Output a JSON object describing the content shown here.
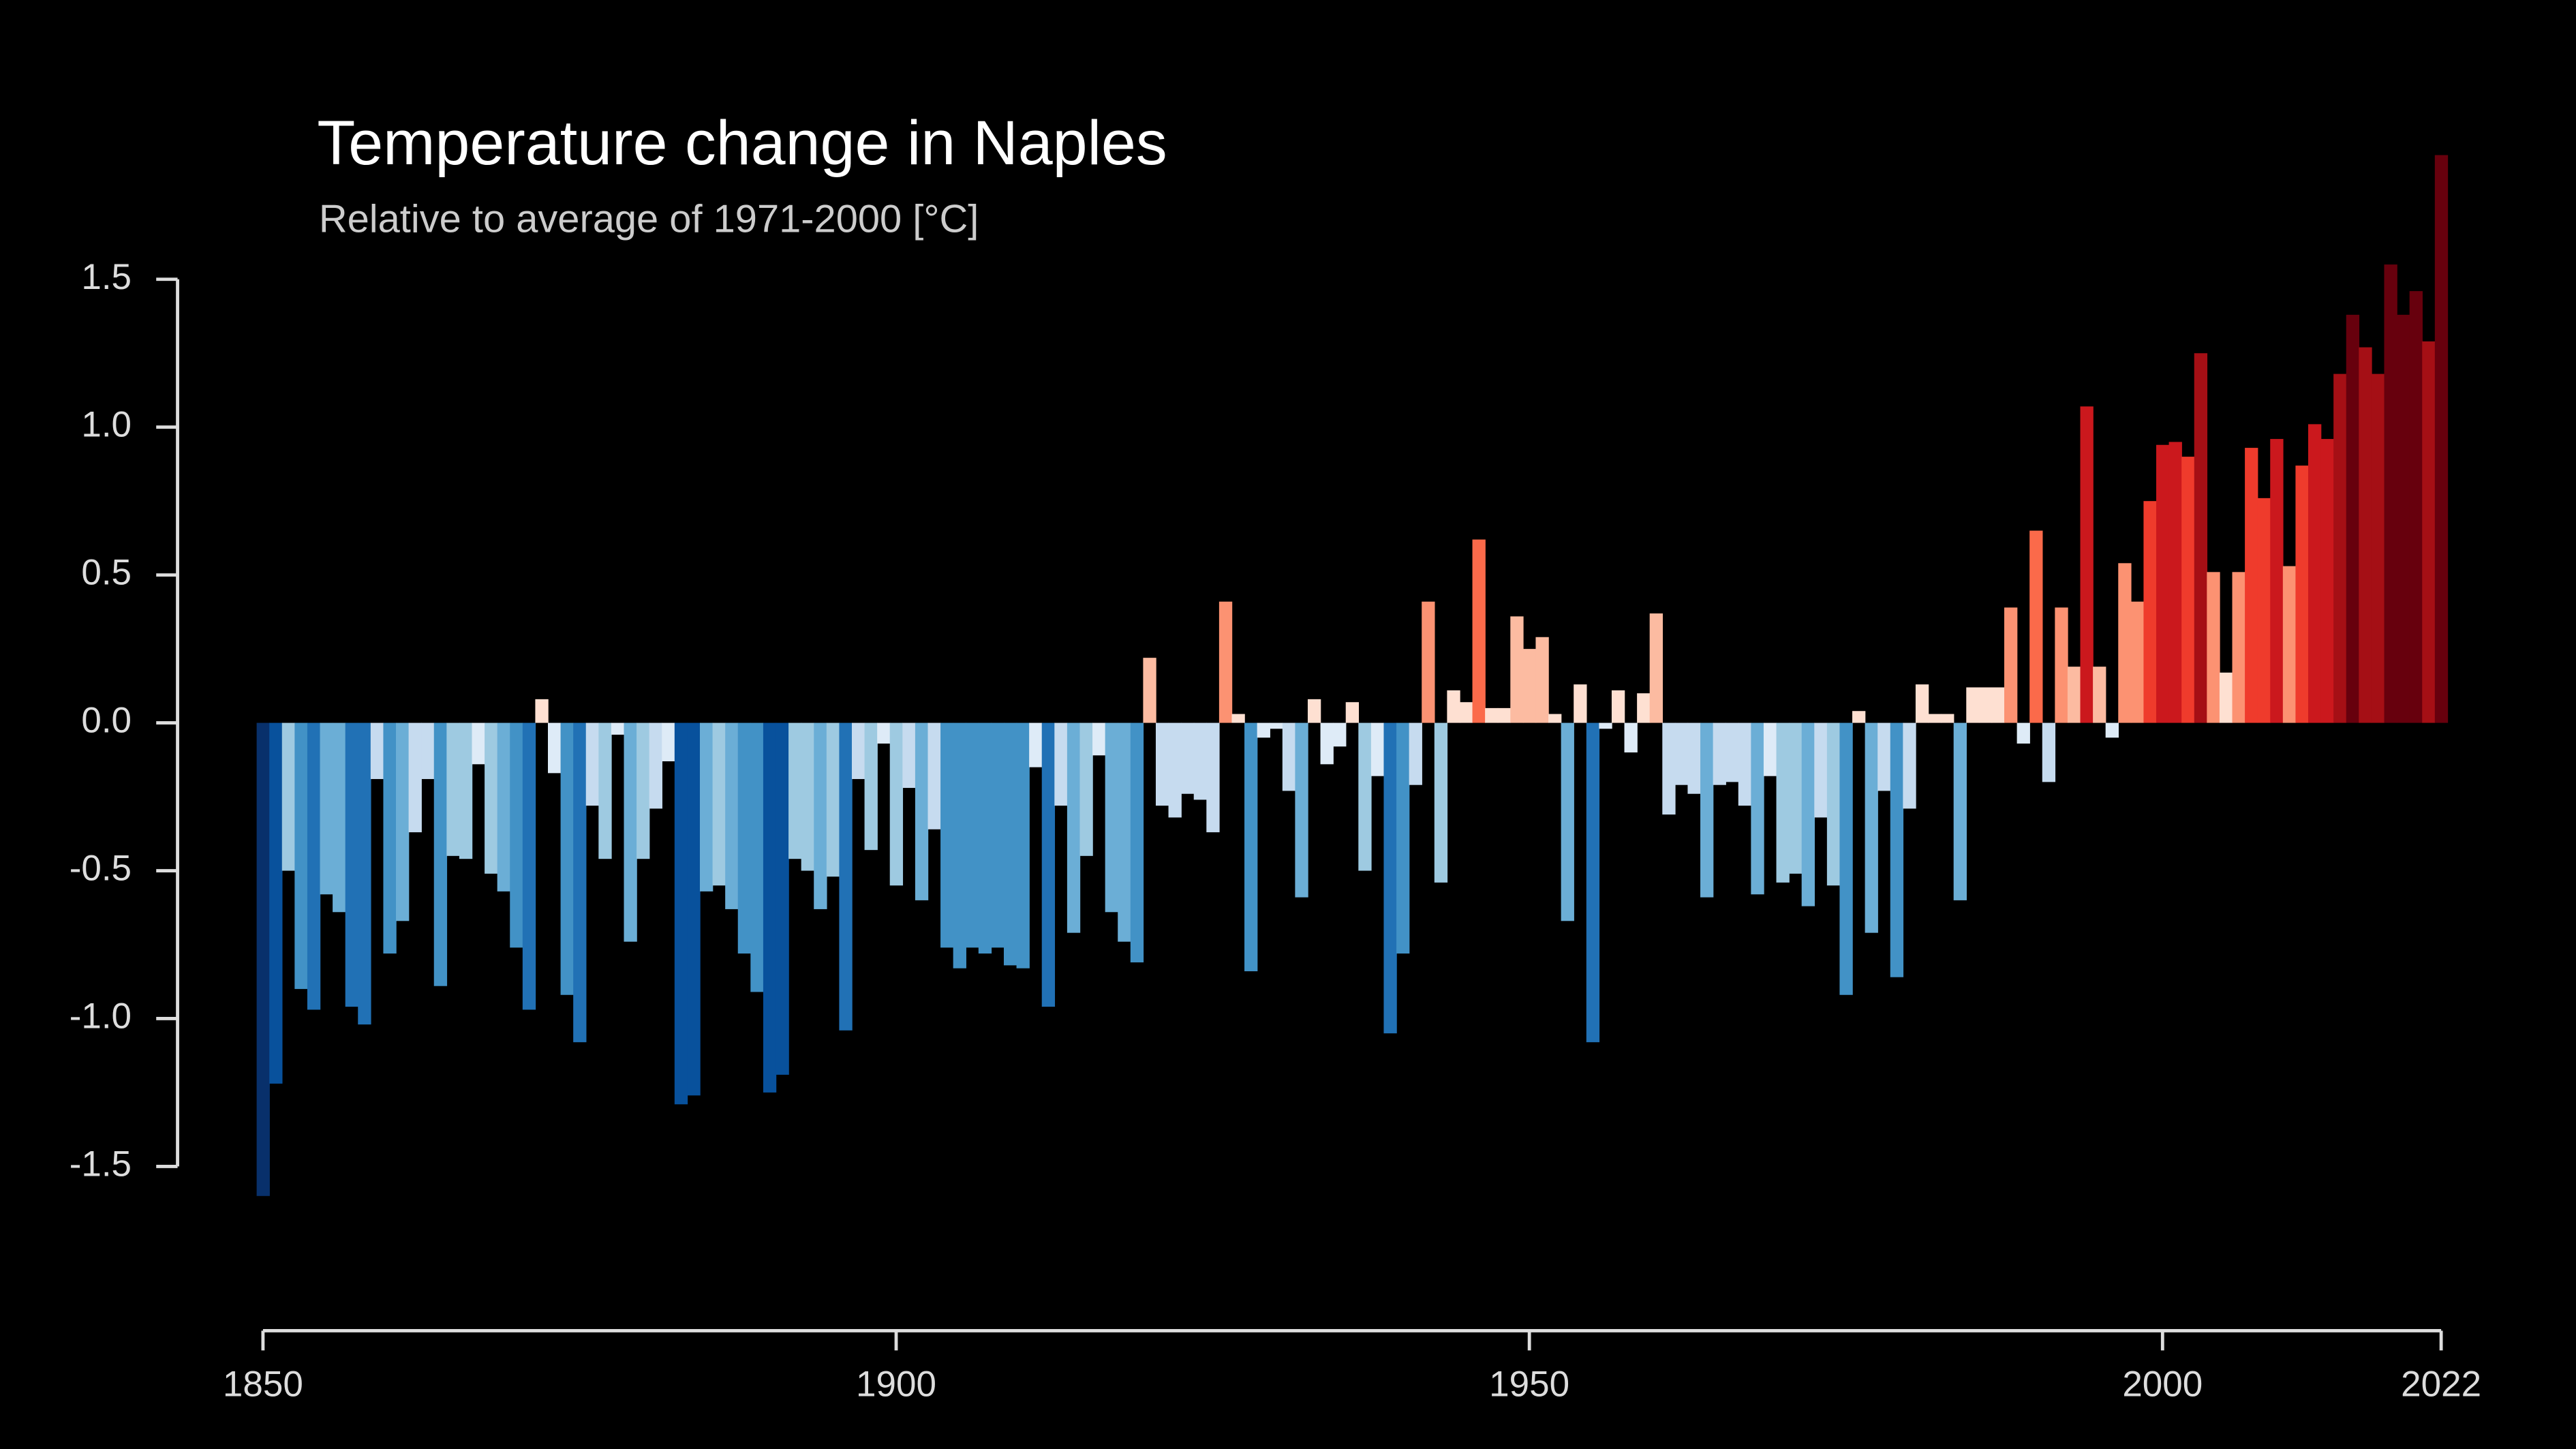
{
  "chart_data": {
    "type": "bar",
    "title": "Temperature change in Naples",
    "subtitle": "Relative to average of 1971-2000  [°C]",
    "x": [
      1850,
      1851,
      1852,
      1853,
      1854,
      1855,
      1856,
      1857,
      1858,
      1859,
      1860,
      1861,
      1862,
      1863,
      1864,
      1865,
      1866,
      1867,
      1868,
      1869,
      1870,
      1871,
      1872,
      1873,
      1874,
      1875,
      1876,
      1877,
      1878,
      1879,
      1880,
      1881,
      1882,
      1883,
      1884,
      1885,
      1886,
      1887,
      1888,
      1889,
      1890,
      1891,
      1892,
      1893,
      1894,
      1895,
      1896,
      1897,
      1898,
      1899,
      1900,
      1901,
      1902,
      1903,
      1904,
      1905,
      1906,
      1907,
      1908,
      1909,
      1910,
      1911,
      1912,
      1913,
      1914,
      1915,
      1916,
      1917,
      1918,
      1919,
      1920,
      1921,
      1922,
      1923,
      1924,
      1925,
      1926,
      1927,
      1928,
      1929,
      1930,
      1931,
      1932,
      1933,
      1934,
      1935,
      1936,
      1937,
      1938,
      1939,
      1940,
      1941,
      1942,
      1943,
      1944,
      1945,
      1946,
      1947,
      1948,
      1949,
      1950,
      1951,
      1952,
      1953,
      1954,
      1955,
      1956,
      1957,
      1958,
      1959,
      1960,
      1961,
      1962,
      1963,
      1964,
      1965,
      1966,
      1967,
      1968,
      1969,
      1970,
      1971,
      1972,
      1973,
      1974,
      1975,
      1976,
      1977,
      1978,
      1979,
      1980,
      1981,
      1982,
      1983,
      1984,
      1985,
      1986,
      1987,
      1988,
      1989,
      1990,
      1991,
      1992,
      1993,
      1994,
      1995,
      1996,
      1997,
      1998,
      1999,
      2000,
      2001,
      2002,
      2003,
      2004,
      2005,
      2006,
      2007,
      2008,
      2009,
      2010,
      2011,
      2012,
      2013,
      2014,
      2015,
      2016,
      2017,
      2018,
      2019,
      2020,
      2021,
      2022
    ],
    "values": [
      -1.6,
      -1.22,
      -0.5,
      -0.9,
      -0.97,
      -0.58,
      -0.64,
      -0.96,
      -1.02,
      -0.19,
      -0.78,
      -0.67,
      -0.37,
      -0.19,
      -0.89,
      -0.45,
      -0.46,
      -0.14,
      -0.51,
      -0.57,
      -0.76,
      -0.97,
      0.08,
      -0.17,
      -0.92,
      -1.08,
      -0.28,
      -0.46,
      -0.04,
      -0.74,
      -0.46,
      -0.29,
      -0.13,
      -1.29,
      -1.26,
      -0.57,
      -0.55,
      -0.63,
      -0.78,
      -0.91,
      -1.25,
      -1.19,
      -0.46,
      -0.5,
      -0.63,
      -0.52,
      -1.04,
      -0.19,
      -0.43,
      -0.07,
      -0.55,
      -0.22,
      -0.6,
      -0.36,
      -0.76,
      -0.83,
      -0.76,
      -0.78,
      -0.76,
      -0.82,
      -0.83,
      -0.15,
      -0.96,
      -0.28,
      -0.71,
      -0.45,
      -0.11,
      -0.64,
      -0.74,
      -0.81,
      0.22,
      -0.28,
      -0.32,
      -0.24,
      -0.26,
      -0.37,
      0.41,
      0.03,
      -0.84,
      -0.05,
      -0.02,
      -0.23,
      -0.59,
      0.08,
      -0.14,
      -0.08,
      0.07,
      -0.5,
      -0.18,
      -1.05,
      -0.78,
      -0.21,
      0.41,
      -0.54,
      0.11,
      0.07,
      0.62,
      0.05,
      0.05,
      0.36,
      0.25,
      0.29,
      0.03,
      -0.67,
      0.13,
      -1.08,
      -0.02,
      0.11,
      -0.1,
      0.1,
      0.37,
      -0.31,
      -0.21,
      -0.24,
      -0.59,
      -0.21,
      -0.2,
      -0.28,
      -0.58,
      -0.18,
      -0.54,
      -0.51,
      -0.62,
      -0.32,
      -0.55,
      -0.92,
      0.04,
      -0.71,
      -0.23,
      -0.86,
      -0.29,
      0.13,
      0.03,
      0.03,
      -0.6,
      0.12,
      0.12,
      0.12,
      0.39,
      -0.07,
      0.65,
      -0.2,
      0.39,
      0.19,
      1.07,
      0.19,
      -0.05,
      0.54,
      0.41,
      0.75,
      0.94,
      0.95,
      0.9,
      1.25,
      0.51,
      0.17,
      0.51,
      0.93,
      0.76,
      0.96,
      0.53,
      0.87,
      1.01,
      0.96,
      1.18,
      1.38,
      1.27,
      1.18,
      1.55,
      1.38,
      1.46,
      1.29,
      1.92
    ],
    "palette": [
      "#08306b",
      "#08519c",
      "#2171b5",
      "#4292c6",
      "#6baed6",
      "#9ecae1",
      "#c6dbef",
      "#deebf7",
      "#fee0d2",
      "#fcbba1",
      "#fc9272",
      "#fb6a4a",
      "#ef3b2c",
      "#cb181d",
      "#a50f15",
      "#67000d"
    ],
    "xlim": [
      1850,
      2022
    ],
    "xticks": [
      1850,
      1900,
      1950,
      2000,
      2022
    ],
    "ylim": [
      -1.9,
      2.0
    ],
    "yticks": [
      {
        "value": 1.5,
        "label": "1.5"
      },
      {
        "value": 1.0,
        "label": "1.0"
      },
      {
        "value": 0.5,
        "label": "0.5"
      },
      {
        "value": 0.0,
        "label": "0.0"
      },
      {
        "value": -0.5,
        "label": "-0.5"
      },
      {
        "value": -1.0,
        "label": "-1.0"
      },
      {
        "value": -1.5,
        "label": "-1.5"
      }
    ]
  }
}
